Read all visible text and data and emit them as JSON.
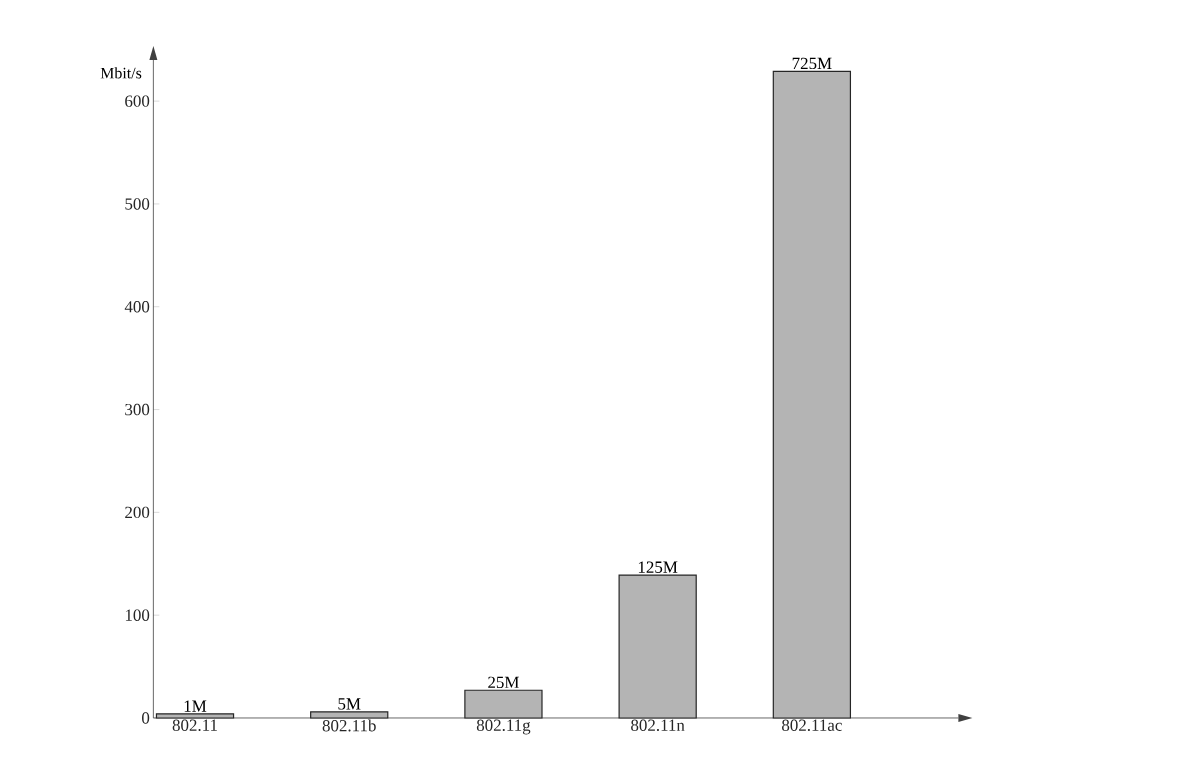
{
  "chart_data": {
    "type": "bar",
    "ylabel": "Mbit/s",
    "categories": [
      "802.11",
      "802.11b",
      "802.11g",
      "802.11n",
      "802.11ac"
    ],
    "values": [
      4,
      6,
      27,
      139,
      629
    ],
    "annotations": [
      {
        "text": "1M",
        "x": "802.11",
        "y": 4
      },
      {
        "text": "5M",
        "x": "802.11b",
        "y": 6
      },
      {
        "text": "25M",
        "x": "802.11g",
        "y": 27
      },
      {
        "text": "125M",
        "x": "802.11n",
        "y": 139
      },
      {
        "text": "725M",
        "x": "802.11ac",
        "y": 629
      }
    ],
    "color": "#b4b4b4",
    "ylim": [
      0,
      640
    ],
    "yticks": [
      0,
      100,
      200,
      300,
      400,
      500,
      600
    ],
    "grid": false
  }
}
